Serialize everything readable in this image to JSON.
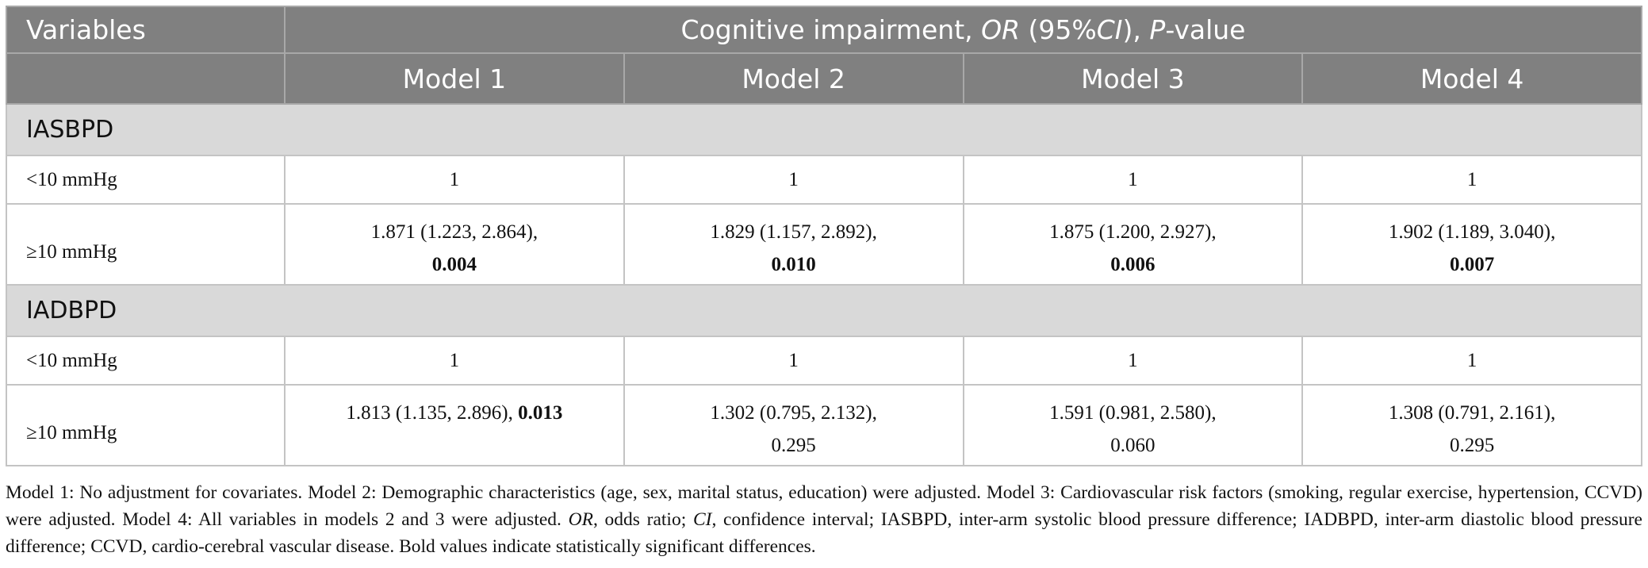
{
  "table": {
    "header": {
      "variables": "Variables",
      "group": [
        {
          "text": "Cognitive impairment, "
        },
        {
          "text": "OR",
          "italic": true
        },
        {
          "text": " (95%"
        },
        {
          "text": "CI",
          "italic": true
        },
        {
          "text": "), "
        },
        {
          "text": "P",
          "italic": true
        },
        {
          "text": "-value"
        }
      ],
      "models": [
        "Model 1",
        "Model 2",
        "Model 3",
        "Model 4"
      ]
    },
    "sections": [
      {
        "label": "IASBPD",
        "rows": [
          {
            "label": "<10 mmHg",
            "cells": [
              "1",
              "1",
              "1",
              "1"
            ]
          },
          {
            "label": "≥10 mmHg",
            "cells": [
              {
                "lines": [
                  [
                    {
                      "text": "1.871 (1.223, 2.864),"
                    }
                  ],
                  [
                    {
                      "text": "0.004",
                      "bold": true
                    }
                  ]
                ]
              },
              {
                "lines": [
                  [
                    {
                      "text": "1.829 (1.157, 2.892),"
                    }
                  ],
                  [
                    {
                      "text": "0.010",
                      "bold": true
                    }
                  ]
                ]
              },
              {
                "lines": [
                  [
                    {
                      "text": "1.875 (1.200, 2.927),"
                    }
                  ],
                  [
                    {
                      "text": "0.006",
                      "bold": true
                    }
                  ]
                ]
              },
              {
                "lines": [
                  [
                    {
                      "text": "1.902 (1.189, 3.040),"
                    }
                  ],
                  [
                    {
                      "text": "0.007",
                      "bold": true
                    }
                  ]
                ]
              }
            ]
          }
        ]
      },
      {
        "label": "IADBPD",
        "rows": [
          {
            "label": "<10 mmHg",
            "cells": [
              "1",
              "1",
              "1",
              "1"
            ]
          },
          {
            "label": "≥10 mmHg",
            "cells": [
              {
                "lines": [
                  [
                    {
                      "text": "1.813 (1.135, 2.896), "
                    },
                    {
                      "text": "0.013",
                      "bold": true
                    }
                  ]
                ]
              },
              {
                "lines": [
                  [
                    {
                      "text": "1.302 (0.795, 2.132),"
                    }
                  ],
                  [
                    {
                      "text": "0.295"
                    }
                  ]
                ]
              },
              {
                "lines": [
                  [
                    {
                      "text": "1.591 (0.981, 2.580),"
                    }
                  ],
                  [
                    {
                      "text": "0.060"
                    }
                  ]
                ]
              },
              {
                "lines": [
                  [
                    {
                      "text": "1.308 (0.791, 2.161),"
                    }
                  ],
                  [
                    {
                      "text": "0.295"
                    }
                  ]
                ]
              }
            ]
          }
        ]
      }
    ]
  },
  "footnote": [
    {
      "text": "Model 1: No adjustment for covariates. Model 2: Demographic characteristics (age, sex, marital status, education) were adjusted. Model 3: Cardiovascular risk factors (smoking, regular exercise, hypertension, CCVD) were adjusted. Model 4: All variables in models 2 and 3 were adjusted. "
    },
    {
      "text": "OR",
      "italic": true
    },
    {
      "text": ", odds ratio; "
    },
    {
      "text": "CI",
      "italic": true
    },
    {
      "text": ", confidence interval; IASBPD, inter-arm systolic blood pressure difference; IADBPD, inter-arm diastolic blood pressure difference; CCVD, cardio-cerebral vascular disease. Bold values indicate statistically significant differences."
    }
  ]
}
